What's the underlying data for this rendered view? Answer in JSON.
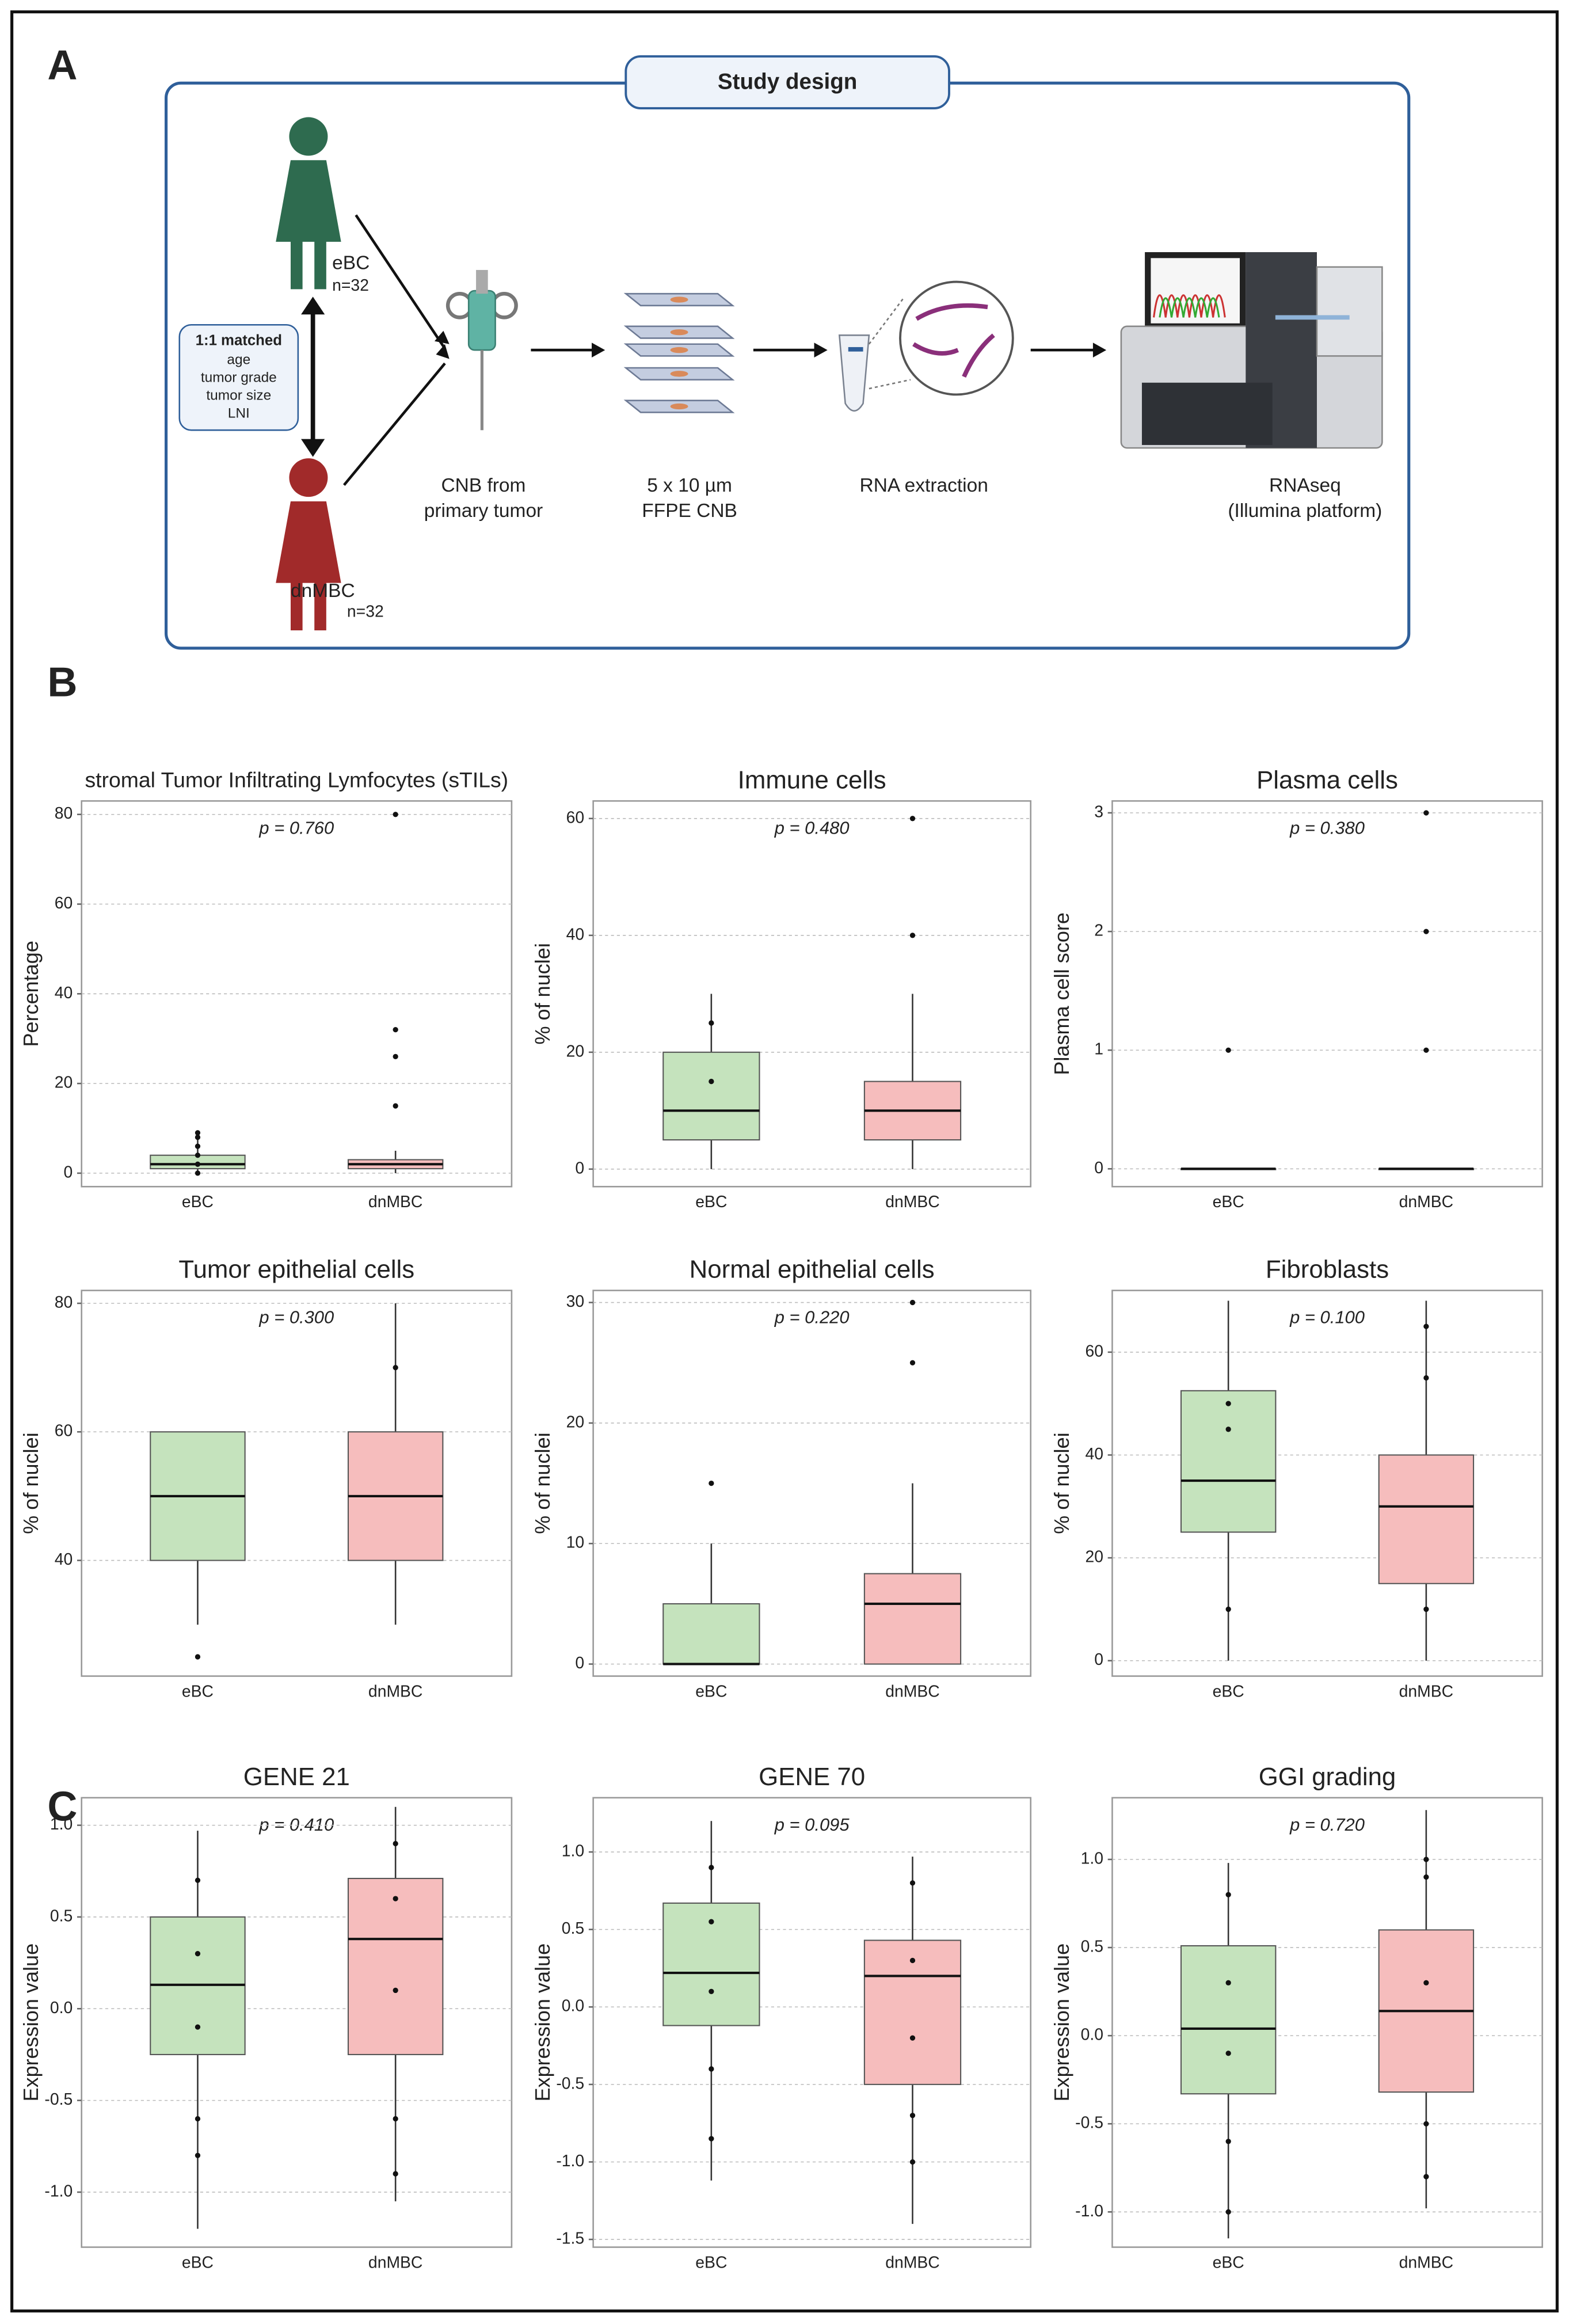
{
  "panel_a": {
    "label": "A",
    "title": "Study design",
    "groups": [
      {
        "name": "eBC",
        "n": "n=32"
      },
      {
        "name": "dnMBC",
        "n": "n=32"
      }
    ],
    "matched": {
      "title": "1:1 matched",
      "items": [
        "age",
        "tumor grade",
        "tumor size",
        "LNI"
      ]
    },
    "steps": [
      [
        "CNB from",
        "primary tumor"
      ],
      [
        "5 x 10 µm",
        "FFPE CNB"
      ],
      [
        "RNA extraction"
      ],
      [
        "RNAseq",
        "(Illumina platform)"
      ]
    ]
  },
  "panel_labels": [
    "B",
    "C"
  ],
  "chart_data": [
    {
      "type": "box",
      "title": "stromal Tumor Infiltrating Lymfocytes (sTILs)",
      "annotation": "p = 0.760",
      "ylabel": "Percentage",
      "categories": [
        "eBC",
        "dnMBC"
      ],
      "ylim": [
        -3,
        83
      ],
      "yticks": [
        0,
        20,
        40,
        60,
        80
      ],
      "grid": true,
      "groups": [
        {
          "color": "#c5e3bd",
          "whisker_low": 0,
          "q1": 1,
          "median": 2,
          "q3": 4,
          "whisker_high": 8,
          "points": [
            0,
            2,
            4,
            6,
            8,
            9
          ]
        },
        {
          "color": "#f6bdbd",
          "whisker_low": 0,
          "q1": 1,
          "median": 2,
          "q3": 3,
          "whisker_high": 5,
          "points": [
            80,
            32,
            26,
            15
          ]
        }
      ]
    },
    {
      "type": "box",
      "title": "Immune cells",
      "annotation": "p = 0.480",
      "ylabel": "% of nuclei",
      "categories": [
        "eBC",
        "dnMBC"
      ],
      "ylim": [
        -3,
        63
      ],
      "yticks": [
        0,
        20,
        40,
        60
      ],
      "grid": true,
      "groups": [
        {
          "color": "#c5e3bd",
          "whisker_low": 0,
          "q1": 5,
          "median": 10,
          "q3": 20,
          "whisker_high": 30,
          "points": [
            25,
            15
          ]
        },
        {
          "color": "#f6bdbd",
          "whisker_low": 0,
          "q1": 5,
          "median": 10,
          "q3": 15,
          "whisker_high": 30,
          "points": [
            60,
            40
          ]
        }
      ]
    },
    {
      "type": "box",
      "title": "Plasma cells",
      "annotation": "p = 0.380",
      "ylabel": "Plasma cell score",
      "categories": [
        "eBC",
        "dnMBC"
      ],
      "ylim": [
        -0.15,
        3.1
      ],
      "yticks": [
        0,
        1,
        2,
        3
      ],
      "grid": true,
      "groups": [
        {
          "color": "#c5e3bd",
          "whisker_low": 0,
          "q1": 0,
          "median": 0,
          "q3": 0,
          "whisker_high": 0,
          "points": [
            1
          ]
        },
        {
          "color": "#f6bdbd",
          "whisker_low": 0,
          "q1": 0,
          "median": 0,
          "q3": 0,
          "whisker_high": 0,
          "points": [
            3,
            2,
            1
          ]
        }
      ]
    },
    {
      "type": "box",
      "title": "Tumor epithelial cells",
      "annotation": "p = 0.300",
      "ylabel": "% of nuclei",
      "categories": [
        "eBC",
        "dnMBC"
      ],
      "ylim": [
        22,
        82
      ],
      "yticks": [
        40,
        60,
        80
      ],
      "grid": true,
      "groups": [
        {
          "color": "#c5e3bd",
          "whisker_low": 30,
          "q1": 40,
          "median": 50,
          "q3": 60,
          "whisker_high": 60,
          "points": [
            25
          ]
        },
        {
          "color": "#f6bdbd",
          "whisker_low": 30,
          "q1": 40,
          "median": 50,
          "q3": 60,
          "whisker_high": 80,
          "points": [
            70
          ]
        }
      ]
    },
    {
      "type": "box",
      "title": "Normal epithelial cells",
      "annotation": "p = 0.220",
      "ylabel": "% of nuclei",
      "categories": [
        "eBC",
        "dnMBC"
      ],
      "ylim": [
        -1,
        31
      ],
      "yticks": [
        0,
        10,
        20,
        30
      ],
      "grid": true,
      "groups": [
        {
          "color": "#c5e3bd",
          "whisker_low": 0,
          "q1": 0,
          "median": 0,
          "q3": 5,
          "whisker_high": 10,
          "points": [
            15
          ]
        },
        {
          "color": "#f6bdbd",
          "whisker_low": 0,
          "q1": 0,
          "median": 5,
          "q3": 7.5,
          "whisker_high": 15,
          "points": [
            30,
            25
          ]
        }
      ]
    },
    {
      "type": "box",
      "title": "Fibroblasts",
      "annotation": "p = 0.100",
      "ylabel": "% of nuclei",
      "categories": [
        "eBC",
        "dnMBC"
      ],
      "ylim": [
        -3,
        72
      ],
      "yticks": [
        0,
        20,
        40,
        60
      ],
      "grid": true,
      "groups": [
        {
          "color": "#c5e3bd",
          "whisker_low": 0,
          "q1": 25,
          "median": 35,
          "q3": 52.5,
          "whisker_high": 70,
          "points": [
            10,
            45,
            50
          ]
        },
        {
          "color": "#f6bdbd",
          "whisker_low": 0,
          "q1": 15,
          "median": 30,
          "q3": 40,
          "whisker_high": 70,
          "points": [
            10,
            55,
            65
          ]
        }
      ]
    },
    {
      "type": "box",
      "title": "GENE 21",
      "annotation": "p = 0.410",
      "ylabel": "Expression value",
      "categories": [
        "eBC",
        "dnMBC"
      ],
      "ylim": [
        -1.3,
        1.15
      ],
      "yticks": [
        {
          "value": -1,
          "label": "-1.0"
        },
        -0.5,
        {
          "value": 0,
          "label": "0.0"
        },
        0.5,
        {
          "value": 1,
          "label": "1.0"
        }
      ],
      "grid": true,
      "groups": [
        {
          "color": "#c5e3bd",
          "whisker_low": -1.2,
          "q1": -0.25,
          "median": 0.13,
          "q3": 0.5,
          "whisker_high": 0.97,
          "points": [
            -0.8,
            -0.6,
            -0.1,
            0.3,
            0.7
          ]
        },
        {
          "color": "#f6bdbd",
          "whisker_low": -1.05,
          "q1": -0.25,
          "median": 0.38,
          "q3": 0.71,
          "whisker_high": 1.1,
          "points": [
            -0.9,
            -0.6,
            0.1,
            0.6,
            0.9
          ]
        }
      ]
    },
    {
      "type": "box",
      "title": "GENE 70",
      "annotation": "p = 0.095",
      "ylabel": "Expression value",
      "categories": [
        "eBC",
        "dnMBC"
      ],
      "ylim": [
        -1.55,
        1.35
      ],
      "yticks": [
        -1.5,
        {
          "value": -1,
          "label": "-1.0"
        },
        -0.5,
        {
          "value": 0,
          "label": "0.0"
        },
        0.5,
        {
          "value": 1,
          "label": "1.0"
        }
      ],
      "grid": true,
      "groups": [
        {
          "color": "#c5e3bd",
          "whisker_low": -1.12,
          "q1": -0.12,
          "median": 0.22,
          "q3": 0.67,
          "whisker_high": 1.2,
          "points": [
            -0.85,
            -0.4,
            0.1,
            0.55,
            0.9
          ]
        },
        {
          "color": "#f6bdbd",
          "whisker_low": -1.4,
          "q1": -0.5,
          "median": 0.2,
          "q3": 0.43,
          "whisker_high": 0.97,
          "points": [
            -1.0,
            -0.7,
            -0.2,
            0.3,
            0.8
          ]
        }
      ]
    },
    {
      "type": "box",
      "title": "GGI grading",
      "annotation": "p = 0.720",
      "ylabel": "Expression value",
      "categories": [
        "eBC",
        "dnMBC"
      ],
      "ylim": [
        -1.2,
        1.35
      ],
      "yticks": [
        {
          "value": -1,
          "label": "-1.0"
        },
        -0.5,
        {
          "value": 0,
          "label": "0.0"
        },
        0.5,
        {
          "value": 1,
          "label": "1.0"
        }
      ],
      "grid": true,
      "groups": [
        {
          "color": "#c5e3bd",
          "whisker_low": -1.15,
          "q1": -0.33,
          "median": 0.04,
          "q3": 0.51,
          "whisker_high": 0.98,
          "points": [
            -1.0,
            -0.6,
            -0.1,
            0.3,
            0.8
          ]
        },
        {
          "color": "#f6bdbd",
          "whisker_low": -0.98,
          "q1": -0.32,
          "median": 0.14,
          "q3": 0.6,
          "whisker_high": 1.28,
          "points": [
            -0.8,
            -0.5,
            0.3,
            0.9,
            1.0
          ]
        }
      ]
    }
  ]
}
